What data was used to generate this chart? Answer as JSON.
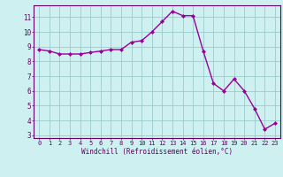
{
  "x": [
    0,
    1,
    2,
    3,
    4,
    5,
    6,
    7,
    8,
    9,
    10,
    11,
    12,
    13,
    14,
    15,
    16,
    17,
    18,
    19,
    20,
    21,
    22,
    23
  ],
  "y": [
    8.8,
    8.7,
    8.5,
    8.5,
    8.5,
    8.6,
    8.7,
    8.8,
    8.8,
    9.3,
    9.4,
    10.0,
    10.7,
    11.4,
    11.1,
    11.1,
    8.7,
    6.5,
    6.0,
    6.8,
    6.0,
    4.8,
    3.4,
    3.8
  ],
  "line_color": "#990099",
  "marker": "D",
  "markersize": 2.0,
  "linewidth": 1.0,
  "xlabel": "Windchill (Refroidissement éolien,°C)",
  "xlabel_color": "#660066",
  "bg_color": "#cff0f0",
  "grid_color": "#99cccc",
  "tick_color": "#660066",
  "spine_color": "#660066",
  "ylim": [
    2.8,
    11.8
  ],
  "yticks": [
    3,
    4,
    5,
    6,
    7,
    8,
    9,
    10,
    11
  ],
  "xticks": [
    0,
    1,
    2,
    3,
    4,
    5,
    6,
    7,
    8,
    9,
    10,
    11,
    12,
    13,
    14,
    15,
    16,
    17,
    18,
    19,
    20,
    21,
    22,
    23
  ],
  "tick_fontsize": 5.0,
  "xlabel_fontsize": 5.5
}
